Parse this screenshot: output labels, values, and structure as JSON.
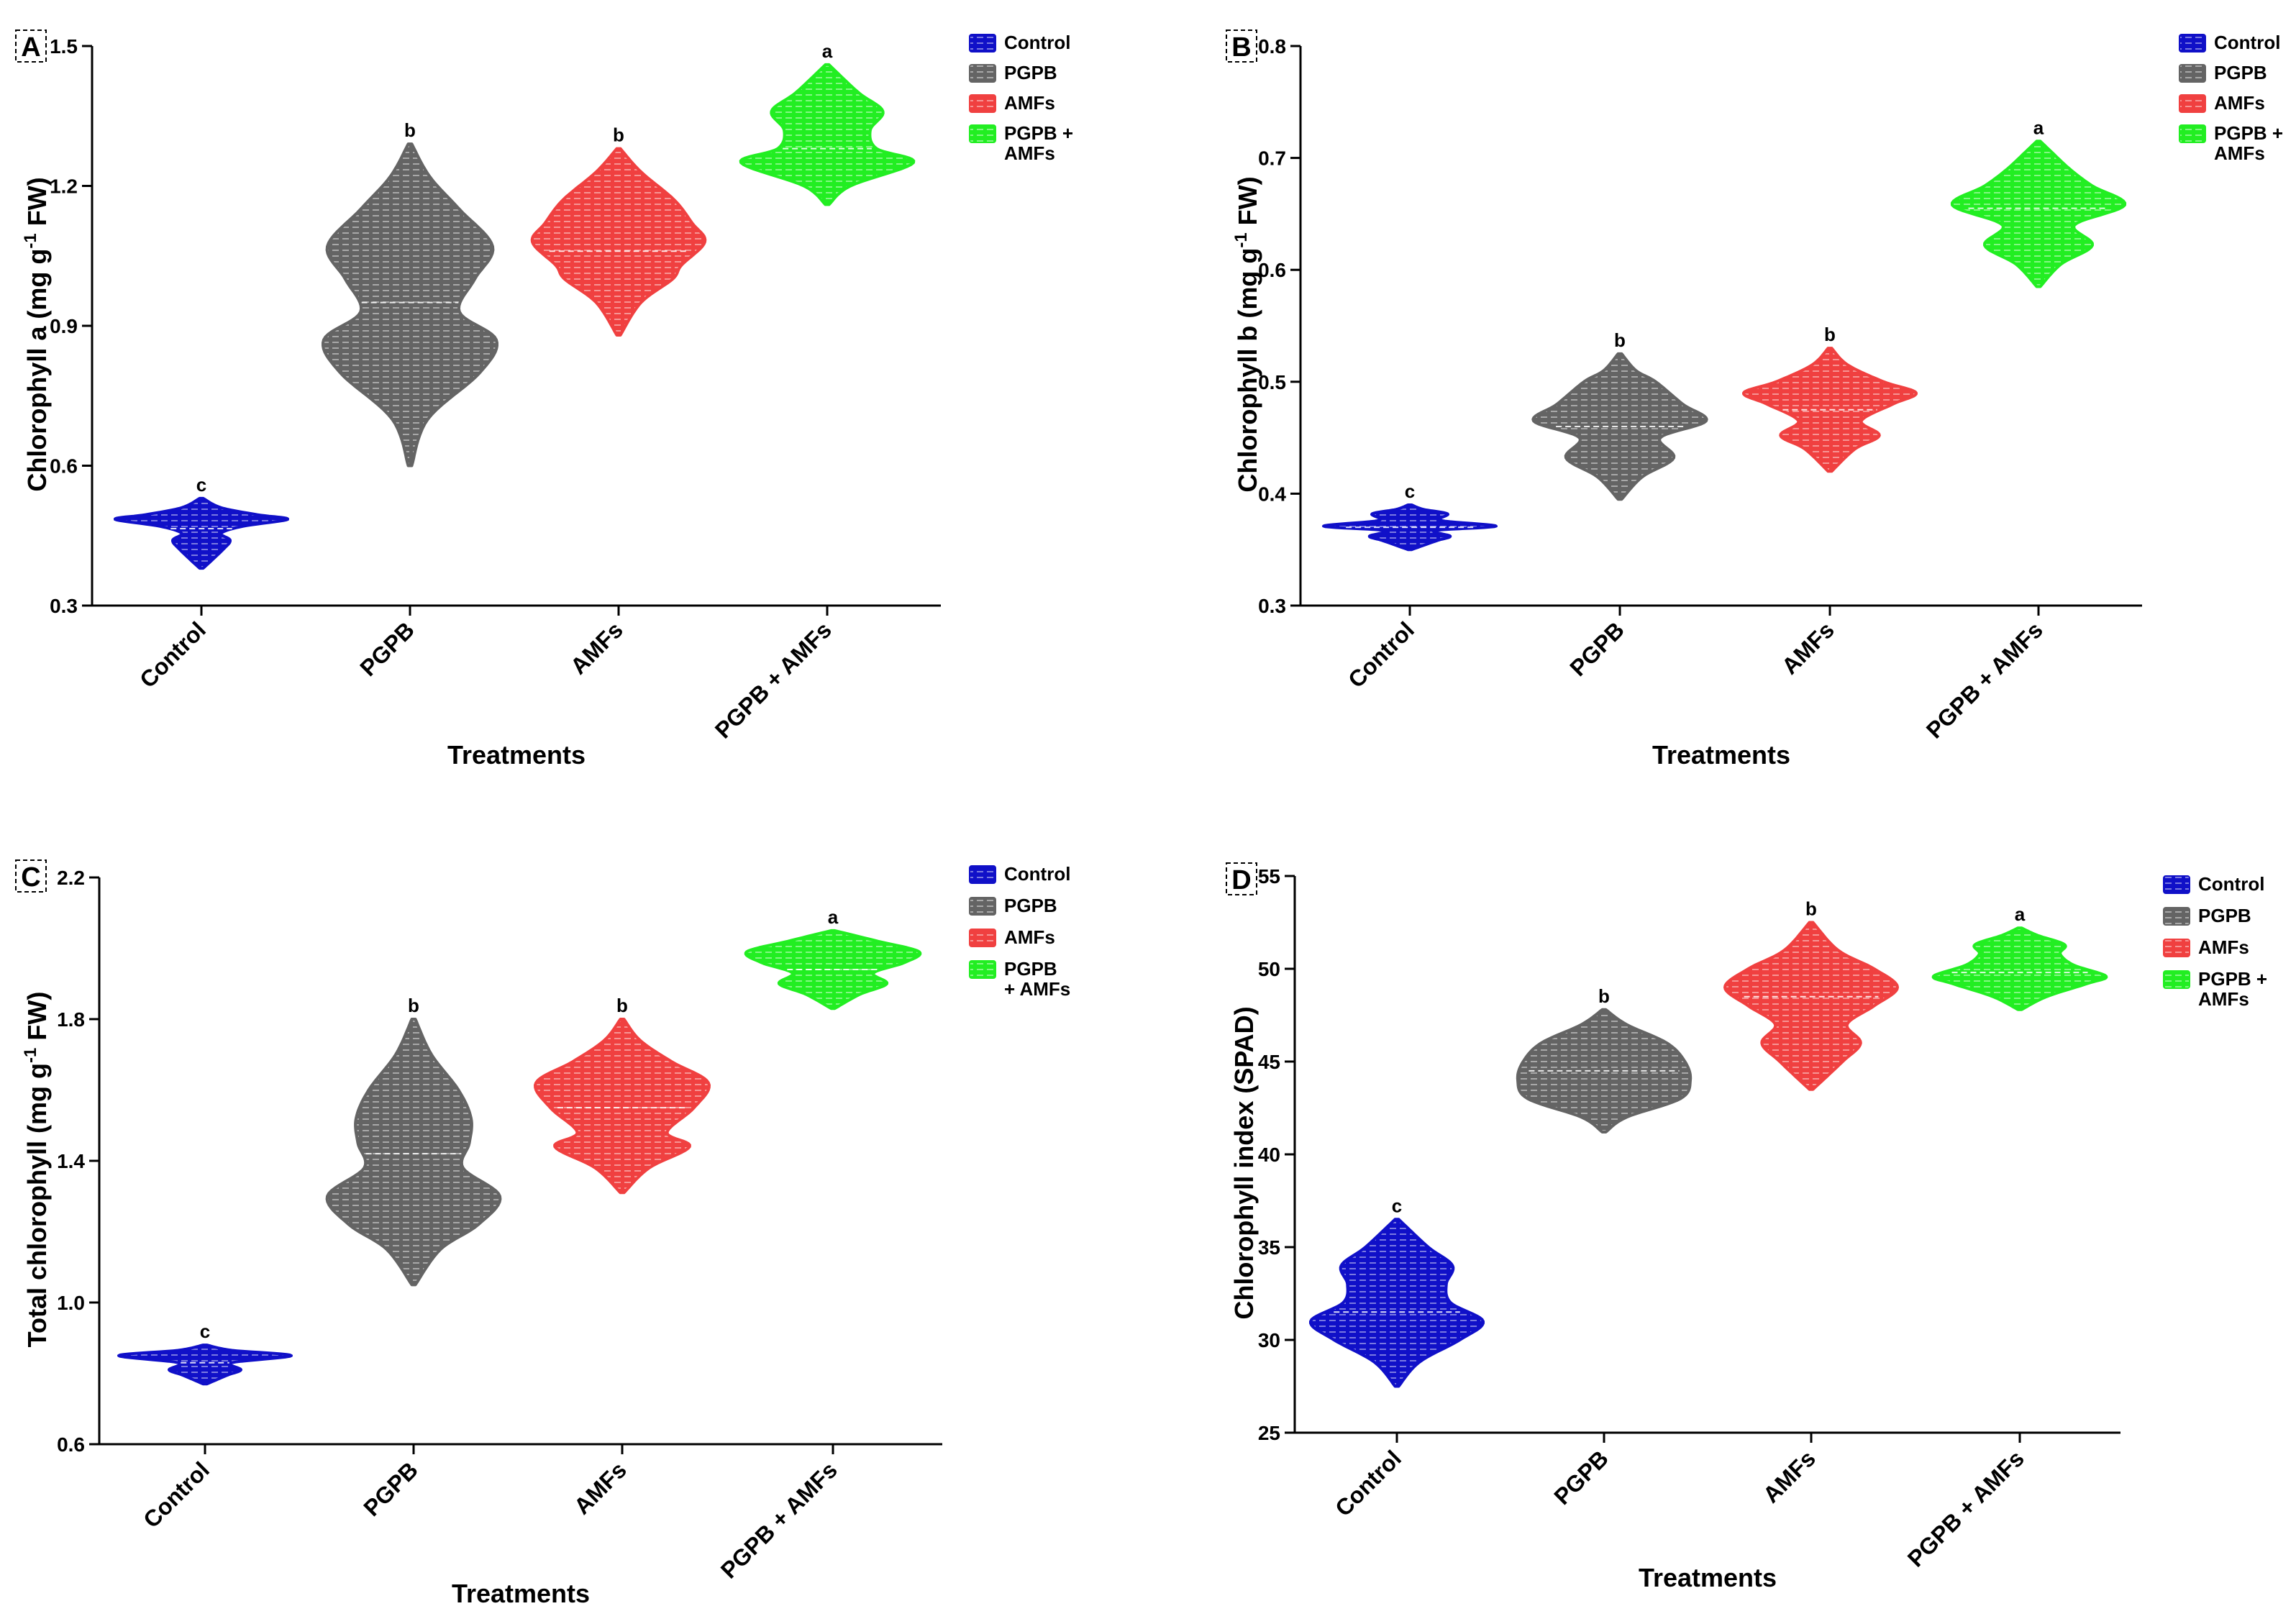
{
  "colors": {
    "Control": "#1010c8",
    "PGPB": "#646464",
    "AMFs": "#f04040",
    "PGPB + AMFs": "#22ee22"
  },
  "chart_data": [
    {
      "panel": "A",
      "type": "violin",
      "xlabel": "Treatments",
      "ylabel": "Chlorophyll a (mg g-1 FW)",
      "ylabel_parts": {
        "pre": "Chlorophyll a (mg g",
        "sup": "-1",
        "post": " FW)"
      },
      "ylim": [
        0.3,
        1.5
      ],
      "yticks": [
        "0.3",
        "0.6",
        "0.9",
        "1.2",
        "1.5"
      ],
      "categories": [
        "Control",
        "PGPB",
        "AMFs",
        "PGPB + AMFs"
      ],
      "legend": [
        "Control",
        "PGPB",
        "AMFs",
        [
          "PGPB +",
          "AMFs"
        ]
      ],
      "violins": [
        {
          "name": "Control",
          "min": 0.38,
          "max": 0.53,
          "median": 0.465,
          "letter": "c",
          "profile": [
            [
              0.38,
              0.02
            ],
            [
              0.42,
              0.24
            ],
            [
              0.44,
              0.32
            ],
            [
              0.455,
              0.22
            ],
            [
              0.47,
              0.46
            ],
            [
              0.485,
              0.96
            ],
            [
              0.495,
              0.62
            ],
            [
              0.51,
              0.22
            ],
            [
              0.53,
              0.02
            ]
          ]
        },
        {
          "name": "PGPB",
          "min": 0.6,
          "max": 1.29,
          "median": 0.95,
          "letter": "b",
          "profile": [
            [
              0.6,
              0.02
            ],
            [
              0.7,
              0.2
            ],
            [
              0.8,
              0.78
            ],
            [
              0.87,
              0.96
            ],
            [
              0.93,
              0.55
            ],
            [
              1.0,
              0.72
            ],
            [
              1.07,
              0.92
            ],
            [
              1.15,
              0.55
            ],
            [
              1.22,
              0.22
            ],
            [
              1.29,
              0.02
            ]
          ]
        },
        {
          "name": "AMFs",
          "min": 0.88,
          "max": 1.28,
          "median": 1.06,
          "letter": "b",
          "profile": [
            [
              0.88,
              0.02
            ],
            [
              0.95,
              0.25
            ],
            [
              1.0,
              0.6
            ],
            [
              1.03,
              0.7
            ],
            [
              1.08,
              0.96
            ],
            [
              1.12,
              0.82
            ],
            [
              1.17,
              0.62
            ],
            [
              1.23,
              0.25
            ],
            [
              1.28,
              0.02
            ]
          ]
        },
        {
          "name": "PGPB + AMFs",
          "min": 1.16,
          "max": 1.46,
          "median": 1.28,
          "letter": "a",
          "profile": [
            [
              1.16,
              0.02
            ],
            [
              1.2,
              0.26
            ],
            [
              1.25,
              0.96
            ],
            [
              1.28,
              0.55
            ],
            [
              1.32,
              0.48
            ],
            [
              1.36,
              0.62
            ],
            [
              1.4,
              0.35
            ],
            [
              1.46,
              0.02
            ]
          ]
        }
      ]
    },
    {
      "panel": "B",
      "type": "violin",
      "xlabel": "Treatments",
      "ylabel": "Chlorophyll b (mg g-1 FW)",
      "ylabel_parts": {
        "pre": "Chlorophyll b (mg g",
        "sup": "-1",
        "post": " FW)"
      },
      "ylim": [
        0.3,
        0.8
      ],
      "yticks": [
        "0.3",
        "0.4",
        "0.5",
        "0.6",
        "0.7",
        "0.8"
      ],
      "categories": [
        "Control",
        "PGPB",
        "AMFs",
        "PGPB + AMFs"
      ],
      "legend": [
        "Control",
        "PGPB",
        "AMFs",
        [
          "PGPB +",
          "AMFs"
        ]
      ],
      "violins": [
        {
          "name": "Control",
          "min": 0.35,
          "max": 0.39,
          "median": 0.37,
          "letter": "c",
          "profile": [
            [
              0.35,
              0.02
            ],
            [
              0.358,
              0.3
            ],
            [
              0.362,
              0.45
            ],
            [
              0.367,
              0.28
            ],
            [
              0.371,
              0.96
            ],
            [
              0.376,
              0.35
            ],
            [
              0.382,
              0.42
            ],
            [
              0.386,
              0.15
            ],
            [
              0.39,
              0.02
            ]
          ]
        },
        {
          "name": "PGPB",
          "min": 0.395,
          "max": 0.525,
          "median": 0.46,
          "letter": "b",
          "profile": [
            [
              0.395,
              0.02
            ],
            [
              0.415,
              0.25
            ],
            [
              0.432,
              0.6
            ],
            [
              0.45,
              0.45
            ],
            [
              0.465,
              0.96
            ],
            [
              0.48,
              0.7
            ],
            [
              0.5,
              0.4
            ],
            [
              0.51,
              0.18
            ],
            [
              0.525,
              0.02
            ]
          ]
        },
        {
          "name": "AMFs",
          "min": 0.42,
          "max": 0.53,
          "median": 0.475,
          "letter": "b",
          "profile": [
            [
              0.42,
              0.02
            ],
            [
              0.44,
              0.28
            ],
            [
              0.452,
              0.55
            ],
            [
              0.465,
              0.35
            ],
            [
              0.48,
              0.7
            ],
            [
              0.49,
              0.96
            ],
            [
              0.5,
              0.6
            ],
            [
              0.515,
              0.2
            ],
            [
              0.53,
              0.02
            ]
          ]
        },
        {
          "name": "PGPB + AMFs",
          "min": 0.585,
          "max": 0.715,
          "median": 0.655,
          "letter": "a",
          "profile": [
            [
              0.585,
              0.02
            ],
            [
              0.605,
              0.25
            ],
            [
              0.622,
              0.6
            ],
            [
              0.64,
              0.4
            ],
            [
              0.658,
              0.96
            ],
            [
              0.675,
              0.6
            ],
            [
              0.69,
              0.35
            ],
            [
              0.705,
              0.15
            ],
            [
              0.715,
              0.02
            ]
          ]
        }
      ]
    },
    {
      "panel": "C",
      "type": "violin",
      "xlabel": "Treatments",
      "ylabel": "Total chlorophyll (mg g-1 FW)",
      "ylabel_parts": {
        "pre": "Total chlorophyll (mg g",
        "sup": "-1",
        "post": " FW)"
      },
      "ylim": [
        0.6,
        2.2
      ],
      "yticks": [
        "0.6",
        "1.0",
        "1.4",
        "1.8",
        "2.2"
      ],
      "categories": [
        "Control",
        "PGPB",
        "AMFs",
        "PGPB + AMFs"
      ],
      "legend": [
        "Control",
        "PGPB",
        [
          "PGPB",
          "+ AMFs"
        ]
      ],
      "legend_full": [
        "Control",
        "PGPB",
        "AMFs",
        [
          "PGPB",
          "+ AMFs"
        ]
      ],
      "violins": [
        {
          "name": "Control",
          "min": 0.77,
          "max": 0.88,
          "median": 0.83,
          "letter": "c",
          "profile": [
            [
              0.77,
              0.02
            ],
            [
              0.795,
              0.25
            ],
            [
              0.81,
              0.4
            ],
            [
              0.83,
              0.3
            ],
            [
              0.85,
              0.96
            ],
            [
              0.865,
              0.3
            ],
            [
              0.88,
              0.02
            ]
          ]
        },
        {
          "name": "PGPB",
          "min": 1.05,
          "max": 1.8,
          "median": 1.42,
          "letter": "b",
          "profile": [
            [
              1.05,
              0.02
            ],
            [
              1.15,
              0.3
            ],
            [
              1.22,
              0.72
            ],
            [
              1.3,
              0.96
            ],
            [
              1.38,
              0.55
            ],
            [
              1.45,
              0.62
            ],
            [
              1.52,
              0.64
            ],
            [
              1.6,
              0.5
            ],
            [
              1.7,
              0.2
            ],
            [
              1.8,
              0.02
            ]
          ]
        },
        {
          "name": "AMFs",
          "min": 1.31,
          "max": 1.8,
          "median": 1.55,
          "letter": "b",
          "profile": [
            [
              1.31,
              0.02
            ],
            [
              1.38,
              0.3
            ],
            [
              1.44,
              0.75
            ],
            [
              1.48,
              0.5
            ],
            [
              1.55,
              0.8
            ],
            [
              1.62,
              0.96
            ],
            [
              1.68,
              0.55
            ],
            [
              1.74,
              0.2
            ],
            [
              1.8,
              0.02
            ]
          ]
        },
        {
          "name": "PGPB + AMFs",
          "min": 1.83,
          "max": 2.05,
          "median": 1.94,
          "letter": "a",
          "profile": [
            [
              1.83,
              0.02
            ],
            [
              1.87,
              0.3
            ],
            [
              1.9,
              0.6
            ],
            [
              1.93,
              0.45
            ],
            [
              1.96,
              0.8
            ],
            [
              1.99,
              0.96
            ],
            [
              2.02,
              0.5
            ],
            [
              2.05,
              0.02
            ]
          ]
        }
      ]
    },
    {
      "panel": "D",
      "type": "violin",
      "xlabel": "Treatments",
      "ylabel": "Chlorophyll index (SPAD)",
      "ylim": [
        25,
        55
      ],
      "yticks": [
        "25",
        "30",
        "35",
        "40",
        "45",
        "50",
        "55"
      ],
      "categories": [
        "Control",
        "PGPB",
        "AMFs",
        "PGPB + AMFs"
      ],
      "legend": [
        "Control",
        "PGPB",
        "AMFs",
        [
          "PGPB +",
          "AMFs"
        ]
      ],
      "violins": [
        {
          "name": "Control",
          "min": 27.5,
          "max": 36.5,
          "median": 31.5,
          "letter": "c",
          "profile": [
            [
              27.5,
              0.02
            ],
            [
              28.8,
              0.25
            ],
            [
              30.0,
              0.7
            ],
            [
              31.0,
              0.96
            ],
            [
              32.0,
              0.6
            ],
            [
              33.0,
              0.55
            ],
            [
              34.0,
              0.62
            ],
            [
              35.0,
              0.35
            ],
            [
              36.5,
              0.02
            ]
          ]
        },
        {
          "name": "PGPB",
          "min": 41.2,
          "max": 47.8,
          "median": 44.5,
          "letter": "b",
          "profile": [
            [
              41.2,
              0.02
            ],
            [
              42.0,
              0.25
            ],
            [
              43.0,
              0.85
            ],
            [
              44.0,
              0.96
            ],
            [
              45.0,
              0.9
            ],
            [
              46.0,
              0.7
            ],
            [
              47.0,
              0.25
            ],
            [
              47.8,
              0.02
            ]
          ]
        },
        {
          "name": "AMFs",
          "min": 43.5,
          "max": 52.5,
          "median": 48.5,
          "letter": "b",
          "profile": [
            [
              43.5,
              0.02
            ],
            [
              45.0,
              0.35
            ],
            [
              46.0,
              0.55
            ],
            [
              47.0,
              0.4
            ],
            [
              48.0,
              0.7
            ],
            [
              49.0,
              0.96
            ],
            [
              50.0,
              0.7
            ],
            [
              51.0,
              0.3
            ],
            [
              52.5,
              0.02
            ]
          ]
        },
        {
          "name": "PGPB + AMFs",
          "min": 47.8,
          "max": 52.2,
          "median": 49.8,
          "letter": "a",
          "profile": [
            [
              47.8,
              0.02
            ],
            [
              48.5,
              0.3
            ],
            [
              49.2,
              0.75
            ],
            [
              49.6,
              0.96
            ],
            [
              50.2,
              0.6
            ],
            [
              50.8,
              0.45
            ],
            [
              51.3,
              0.5
            ],
            [
              51.8,
              0.2
            ],
            [
              52.2,
              0.02
            ]
          ]
        }
      ]
    }
  ]
}
